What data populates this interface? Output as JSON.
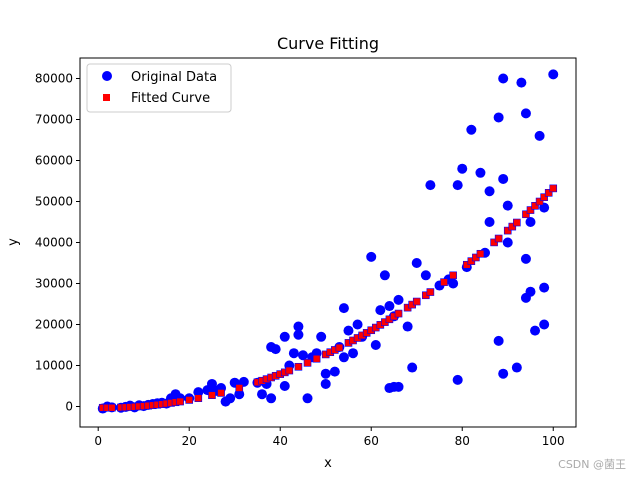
{
  "colors": {
    "original": "#0000ff",
    "fitted": "#ff0000",
    "fitted_edge": "#0000ff",
    "axis": "#000000",
    "background": "#ffffff"
  },
  "watermark": "CSDN @菌王",
  "chart_data": {
    "type": "scatter",
    "title": "Curve Fitting",
    "xlabel": "x",
    "ylabel": "y",
    "xlim": [
      -4,
      105
    ],
    "ylim": [
      -5000,
      85000
    ],
    "xticks": [
      0,
      20,
      40,
      60,
      80,
      100
    ],
    "yticks": [
      0,
      10000,
      20000,
      30000,
      40000,
      50000,
      60000,
      70000,
      80000
    ],
    "grid": false,
    "legend": {
      "position": "top-left",
      "entries": [
        "Original Data",
        "Fitted Curve"
      ]
    },
    "series": [
      {
        "name": "Original Data",
        "marker": "circle",
        "points": [
          [
            1,
            -500
          ],
          [
            2,
            0
          ],
          [
            3,
            -200
          ],
          [
            5,
            -300
          ],
          [
            6,
            -100
          ],
          [
            7,
            200
          ],
          [
            8,
            -200
          ],
          [
            9,
            300
          ],
          [
            10,
            100
          ],
          [
            11,
            400
          ],
          [
            12,
            600
          ],
          [
            13,
            800
          ],
          [
            14,
            900
          ],
          [
            15,
            700
          ],
          [
            16,
            2000
          ],
          [
            17,
            3000
          ],
          [
            18,
            2000
          ],
          [
            20,
            2000
          ],
          [
            22,
            3500
          ],
          [
            24,
            4000
          ],
          [
            25,
            5500
          ],
          [
            26,
            3800
          ],
          [
            27,
            4500
          ],
          [
            28,
            1200
          ],
          [
            29,
            2000
          ],
          [
            30,
            5800
          ],
          [
            31,
            3000
          ],
          [
            32,
            6000
          ],
          [
            35,
            5800
          ],
          [
            36,
            3000
          ],
          [
            37,
            5500
          ],
          [
            38,
            2000
          ],
          [
            38,
            14500
          ],
          [
            39,
            14000
          ],
          [
            41,
            5000
          ],
          [
            41,
            17000
          ],
          [
            42,
            10000
          ],
          [
            43,
            13000
          ],
          [
            44,
            17500
          ],
          [
            44,
            19500
          ],
          [
            45,
            12500
          ],
          [
            46,
            2000
          ],
          [
            47,
            12000
          ],
          [
            48,
            13000
          ],
          [
            49,
            17000
          ],
          [
            50,
            5500
          ],
          [
            50,
            8000
          ],
          [
            52,
            8500
          ],
          [
            53,
            14500
          ],
          [
            54,
            12000
          ],
          [
            54,
            24000
          ],
          [
            55,
            18500
          ],
          [
            56,
            13000
          ],
          [
            57,
            20000
          ],
          [
            58,
            17000
          ],
          [
            60,
            36500
          ],
          [
            61,
            15000
          ],
          [
            62,
            23500
          ],
          [
            63,
            32000
          ],
          [
            64,
            4500
          ],
          [
            64,
            24500
          ],
          [
            65,
            22000
          ],
          [
            65,
            4800
          ],
          [
            66,
            4800
          ],
          [
            66,
            26000
          ],
          [
            68,
            19500
          ],
          [
            69,
            9500
          ],
          [
            70,
            35000
          ],
          [
            72,
            32000
          ],
          [
            73,
            54000
          ],
          [
            75,
            29500
          ],
          [
            77,
            31000
          ],
          [
            78,
            30000
          ],
          [
            79,
            6500
          ],
          [
            79,
            54000
          ],
          [
            80,
            58000
          ],
          [
            81,
            34000
          ],
          [
            82,
            67500
          ],
          [
            84,
            57000
          ],
          [
            85,
            37500
          ],
          [
            86,
            45000
          ],
          [
            86,
            52500
          ],
          [
            88,
            16000
          ],
          [
            88,
            70500
          ],
          [
            89,
            55500
          ],
          [
            89,
            80000
          ],
          [
            89,
            8000
          ],
          [
            90,
            49000
          ],
          [
            90,
            40000
          ],
          [
            92,
            9500
          ],
          [
            93,
            79000
          ],
          [
            94,
            71500
          ],
          [
            94,
            36000
          ],
          [
            94,
            26500
          ],
          [
            95,
            45000
          ],
          [
            95,
            28000
          ],
          [
            96,
            18500
          ],
          [
            97,
            66000
          ],
          [
            98,
            29000
          ],
          [
            98,
            20000
          ],
          [
            98,
            48500
          ],
          [
            100,
            81000
          ]
        ]
      },
      {
        "name": "Fitted Curve",
        "marker": "square",
        "model": "poly2",
        "coefficients": [
          5.5,
          -15,
          -300
        ],
        "x": [
          1,
          2,
          3,
          5,
          6,
          7,
          8,
          9,
          10,
          11,
          12,
          13,
          14,
          15,
          16,
          17,
          18,
          20,
          22,
          25,
          27,
          31,
          35,
          36,
          37,
          38,
          39,
          40,
          41,
          42,
          44,
          46,
          48,
          50,
          51,
          52,
          53,
          55,
          56,
          57,
          58,
          59,
          60,
          61,
          62,
          63,
          64,
          65,
          66,
          68,
          69,
          70,
          72,
          73,
          76,
          78,
          81,
          82,
          83,
          84,
          87,
          88,
          90,
          91,
          92,
          94,
          95,
          96,
          97,
          98,
          99,
          100
        ]
      }
    ]
  }
}
